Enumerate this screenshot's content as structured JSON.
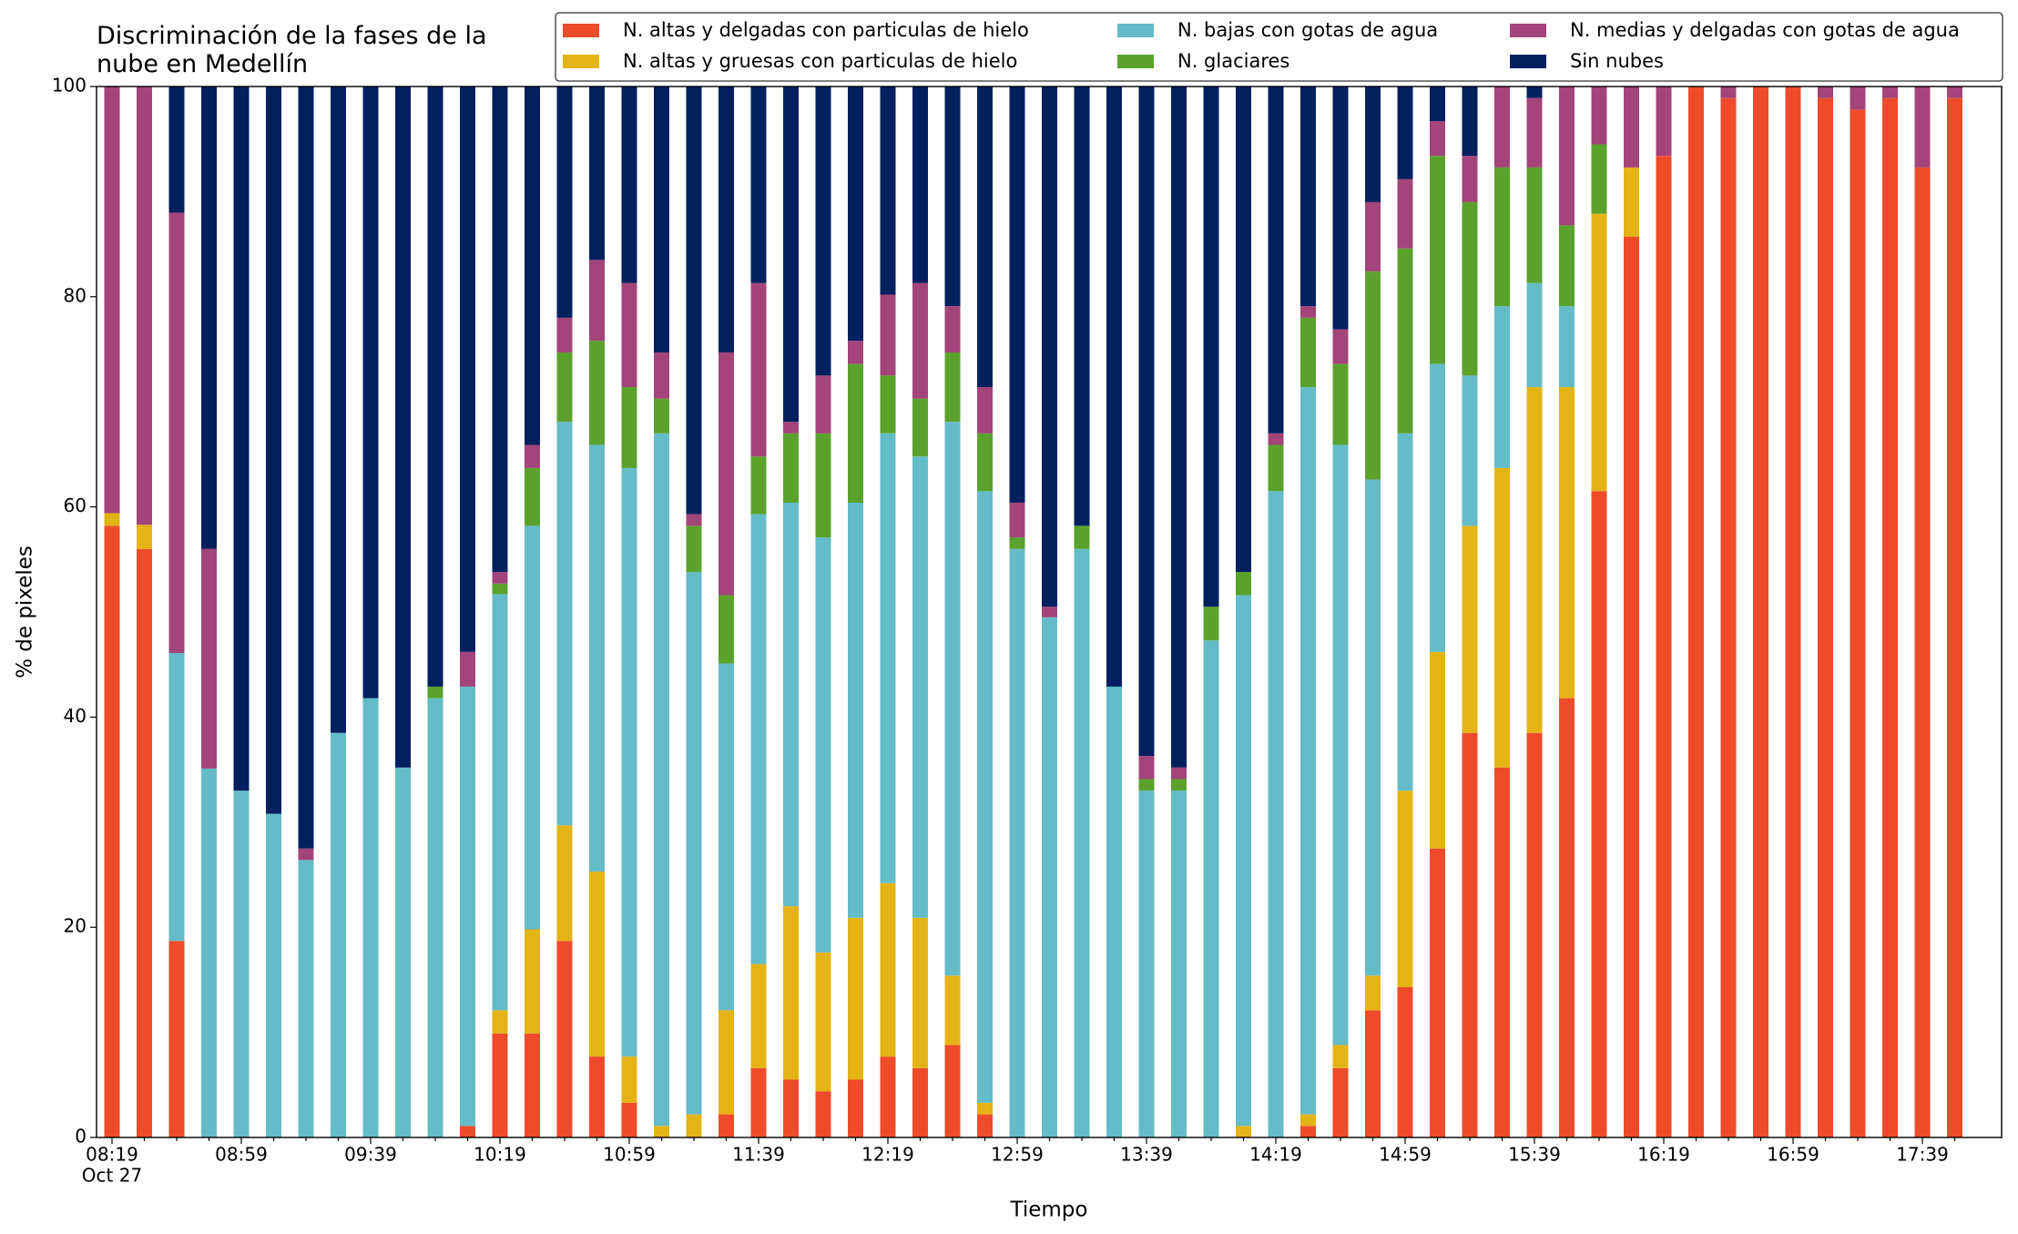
{
  "chart_data": {
    "type": "stacked_bar",
    "title": "Discriminación de la fases de la\nnube en Medellín",
    "x_label": "Tiempo",
    "y_label": "% de pixeles",
    "date_label": "Oct 27",
    "categories": [
      "08:19",
      null,
      null,
      null,
      "08:59",
      null,
      null,
      null,
      "09:39",
      null,
      null,
      null,
      "10:19",
      null,
      null,
      null,
      "10:59",
      null,
      null,
      null,
      "11:39",
      null,
      null,
      null,
      "12:19",
      null,
      null,
      null,
      "12:59",
      null,
      null,
      null,
      "13:39",
      null,
      null,
      null,
      "14:19",
      null,
      null,
      null,
      "14:59",
      null,
      null,
      null,
      "15:39",
      null,
      null,
      null,
      "16:19",
      null,
      null,
      null,
      "16:59",
      null,
      null,
      null,
      "17:39",
      null
    ],
    "series": [
      {
        "name": "N. altas y delgadas con particulas de hielo",
        "color": "#ee4b2b",
        "values": [
          58.2,
          56,
          18.7,
          0,
          0,
          0,
          0,
          0,
          0,
          0,
          0,
          1.1,
          9.9,
          9.9,
          18.7,
          7.7,
          3.3,
          0,
          0,
          2.2,
          6.6,
          5.5,
          4.4,
          5.5,
          7.7,
          6.6,
          8.8,
          2.2,
          0,
          0,
          0,
          0,
          0,
          0,
          0,
          0,
          0,
          1.1,
          6.6,
          12.1,
          14.3,
          27.5,
          38.5,
          35.2,
          38.5,
          41.8,
          61.5,
          85.7,
          93.4,
          100,
          98.9,
          100,
          100,
          98.9,
          97.8,
          98.9,
          92.3,
          98.9
        ]
      },
      {
        "name": "N. altas y gruesas con particulas de hielo",
        "color": "#e4b416",
        "values": [
          1.2,
          2.3,
          0,
          0,
          0,
          0,
          0,
          0,
          0,
          0,
          0,
          0,
          2.2,
          9.9,
          11,
          17.6,
          4.4,
          1.1,
          2.2,
          9.9,
          9.9,
          16.5,
          13.2,
          15.4,
          16.5,
          14.3,
          6.6,
          1.1,
          0,
          0,
          0,
          0,
          0,
          0,
          0,
          1.1,
          0,
          1.1,
          2.2,
          3.3,
          18.7,
          18.7,
          19.7,
          28.5,
          32.9,
          29.6,
          26.4,
          6.6,
          0,
          0,
          0,
          0,
          0,
          0,
          0,
          0,
          0,
          0
        ]
      },
      {
        "name": "N. bajas con gotas de agua",
        "color": "#64bcc8",
        "values": [
          0,
          0,
          27.4,
          35.1,
          33,
          30.8,
          26.4,
          38.5,
          41.8,
          35.2,
          41.8,
          41.8,
          39.6,
          38.4,
          38.4,
          40.6,
          56,
          65.9,
          51.6,
          33,
          42.8,
          38.4,
          39.5,
          39.5,
          42.8,
          43.9,
          52.7,
          58.2,
          56,
          49.5,
          56,
          42.9,
          33,
          33,
          47.3,
          50.5,
          61.5,
          69.2,
          57.1,
          47.2,
          34,
          27.4,
          14.3,
          15.4,
          9.9,
          7.7,
          0,
          0,
          0,
          0,
          0,
          0,
          0,
          0,
          0,
          0,
          0,
          0
        ]
      },
      {
        "name": "N. glaciares",
        "color": "#5ba22d",
        "values": [
          0,
          0,
          0,
          0,
          0,
          0,
          0,
          0,
          0,
          0,
          1.1,
          0,
          1,
          5.5,
          6.6,
          9.9,
          7.7,
          3.3,
          4.4,
          6.5,
          5.5,
          6.6,
          9.9,
          13.2,
          5.5,
          5.5,
          6.6,
          5.5,
          1.1,
          0,
          2.2,
          0,
          1.1,
          1.1,
          3.2,
          2.2,
          4.4,
          6.6,
          7.7,
          19.8,
          17.6,
          19.8,
          16.5,
          13.2,
          11,
          7.7,
          6.6,
          0,
          0,
          0,
          0,
          0,
          0,
          0,
          0,
          0,
          0,
          0
        ]
      },
      {
        "name": "N. medias y delgadas con gotas de agua",
        "color": "#a3447a",
        "values": [
          40.6,
          41.7,
          41.9,
          20.9,
          0,
          0,
          1.1,
          0,
          0,
          0,
          0,
          3.3,
          1.1,
          2.2,
          3.3,
          7.7,
          9.9,
          4.4,
          1.1,
          23.1,
          16.5,
          1.1,
          5.5,
          2.2,
          7.7,
          11,
          4.4,
          4.4,
          3.3,
          1,
          0,
          0,
          2.2,
          1.1,
          0,
          0,
          1.1,
          1.1,
          3.3,
          6.6,
          6.6,
          3.3,
          4.4,
          7.7,
          6.6,
          13.2,
          5.5,
          7.7,
          6.6,
          0,
          1.1,
          0,
          0,
          1.1,
          2.2,
          1.1,
          7.7,
          1.1
        ]
      },
      {
        "name": "Sin nubes",
        "color": "#03205e",
        "values": [
          0,
          0,
          12,
          44,
          67,
          69.2,
          72.5,
          61.5,
          58.2,
          64.8,
          57.1,
          53.8,
          46.2,
          34.1,
          22,
          16.5,
          18.7,
          25.3,
          40.7,
          25.3,
          18.7,
          31.9,
          27.5,
          24.2,
          19.8,
          18.7,
          20.9,
          28.6,
          39.6,
          49.5,
          41.8,
          57.1,
          63.7,
          64.8,
          49.5,
          46.2,
          33,
          20.9,
          23.1,
          11,
          8.8,
          3.3,
          6.6,
          0,
          1.1,
          0,
          0,
          0,
          0,
          0,
          0,
          0,
          0,
          0,
          0,
          0,
          0,
          0
        ]
      }
    ],
    "ylim": [
      0,
      100
    ],
    "yticks": [
      0,
      20,
      40,
      60,
      80,
      100
    ],
    "grid": false,
    "legend": "upper right"
  }
}
